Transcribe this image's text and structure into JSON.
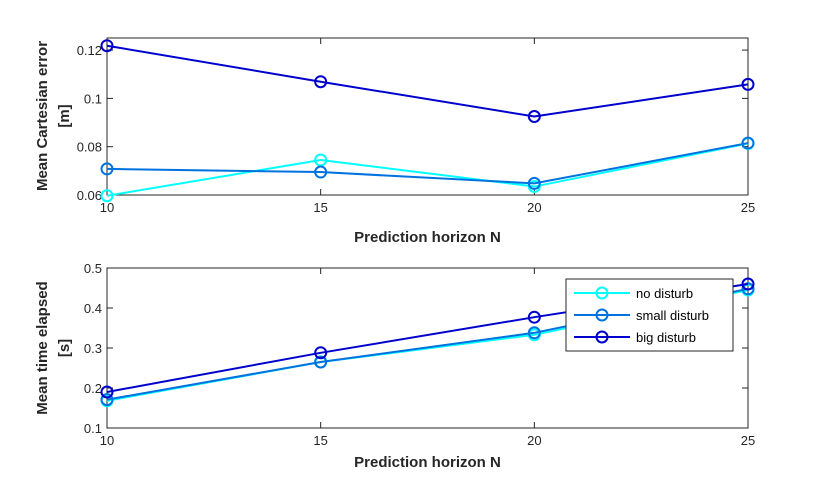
{
  "chart_data": [
    {
      "type": "line",
      "x": [
        10,
        15,
        20,
        25
      ],
      "xlabel": "Prediction horizon N",
      "ylabel_lines": [
        "Mean Cartesian error",
        "[m]"
      ],
      "xlim": [
        10,
        25
      ],
      "ylim": [
        0.06,
        0.125
      ],
      "xticks": [
        10,
        15,
        20,
        25
      ],
      "xtick_labels": [
        "10",
        "15",
        "20",
        "25"
      ],
      "yticks": [
        0.06,
        0.08,
        0.1,
        0.12
      ],
      "ytick_labels": [
        "0.06",
        "0.08",
        "0.1",
        "0.12"
      ],
      "grid": false,
      "series": [
        {
          "name": "no disturb",
          "values": [
            0.0597,
            0.0745,
            0.0635,
            0.0813
          ]
        },
        {
          "name": "small disturb",
          "values": [
            0.0708,
            0.0695,
            0.0648,
            0.0815
          ]
        },
        {
          "name": "big disturb",
          "values": [
            0.1218,
            0.1069,
            0.0925,
            0.1058
          ]
        }
      ]
    },
    {
      "type": "line",
      "x": [
        10,
        15,
        20,
        25
      ],
      "xlabel": "Prediction horizon N",
      "ylabel_lines": [
        "Mean time elapsed",
        "[s]"
      ],
      "xlim": [
        10,
        25
      ],
      "ylim": [
        0.1,
        0.5
      ],
      "xticks": [
        10,
        15,
        20,
        25
      ],
      "xtick_labels": [
        "10",
        "15",
        "20",
        "25"
      ],
      "yticks": [
        0.1,
        0.2,
        0.3,
        0.4,
        0.5
      ],
      "ytick_labels": [
        "0.1",
        "0.2",
        "0.3",
        "0.4",
        "0.5"
      ],
      "grid": false,
      "legend": "top-right",
      "series": [
        {
          "name": "no disturb",
          "values": [
            0.168,
            0.265,
            0.333,
            0.445
          ]
        },
        {
          "name": "small disturb",
          "values": [
            0.171,
            0.265,
            0.338,
            0.448
          ]
        },
        {
          "name": "big disturb",
          "values": [
            0.19,
            0.288,
            0.377,
            0.46
          ]
        }
      ]
    }
  ],
  "colors": {
    "no disturb": "#00ffff",
    "small disturb": "#0072e0",
    "big disturb": "#0000cc",
    "axes": "#262626"
  }
}
